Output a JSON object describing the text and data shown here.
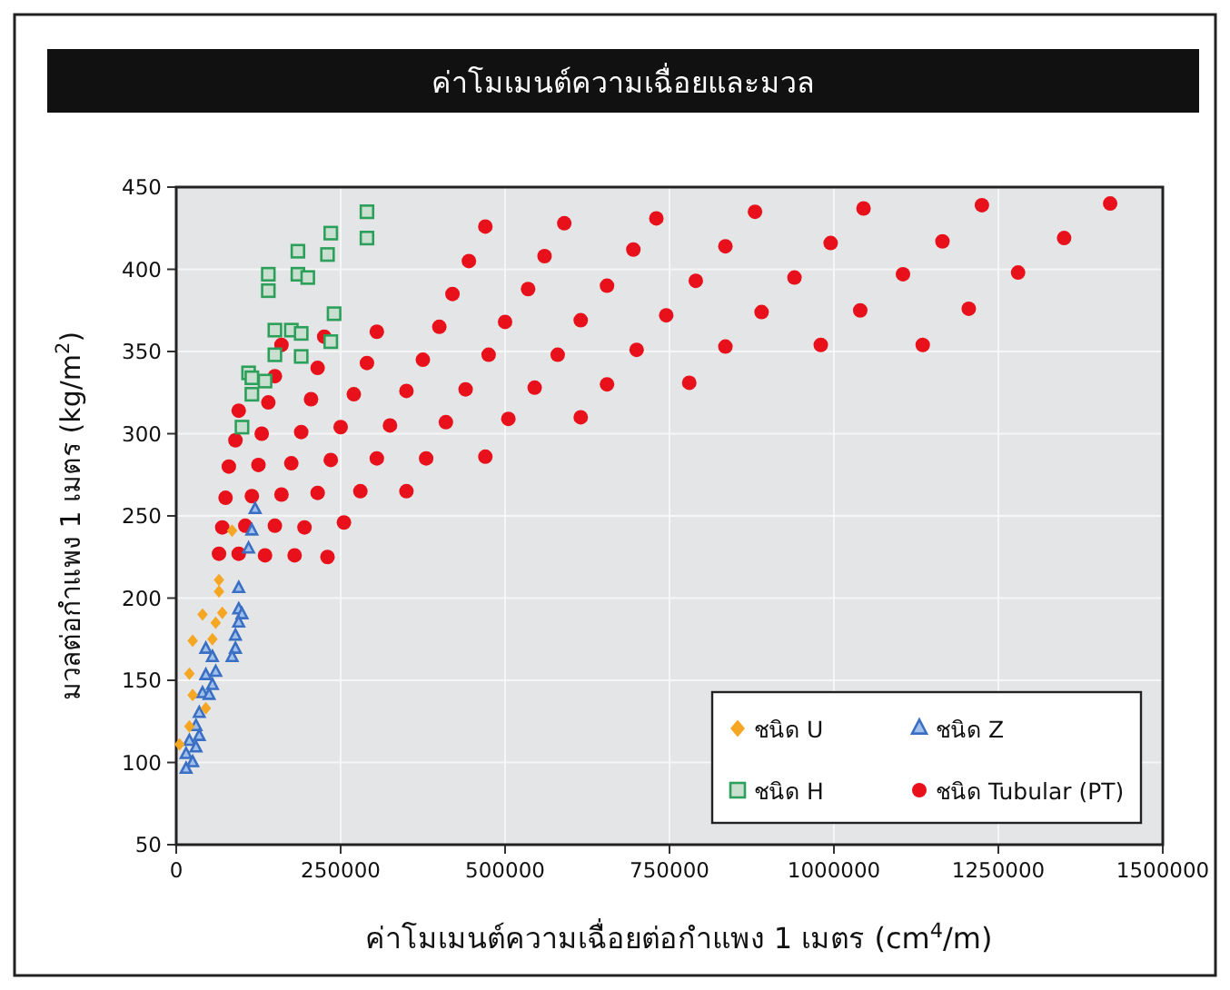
{
  "chart_data": {
    "type": "scatter",
    "title": "ค่าโมเมนต์ความเฉื่อยและมวล",
    "xlabel": "ค่าโมเมนต์ความเฉื่อยต่อกำแพง 1 เมตร (cm$^{4}$/m)",
    "ylabel": "มวลต่อกำแพง 1 เมตร (kg/m$^{2}$)",
    "xlim": [
      0,
      1500000
    ],
    "ylim": [
      50,
      450
    ],
    "xticks": [
      0,
      250000,
      500000,
      750000,
      1000000,
      1250000,
      1500000
    ],
    "yticks": [
      50,
      100,
      150,
      200,
      250,
      300,
      350,
      400,
      450
    ],
    "grid": true,
    "legend": "bottom right",
    "series": [
      {
        "name": "ชนิด U",
        "color": "#f5a623",
        "marker": "diamond",
        "x": [
          85000,
          65000,
          65000,
          40000,
          70000,
          60000,
          25000,
          55000,
          20000,
          25000,
          45000,
          20000,
          5000
        ],
        "values": [
          241,
          211,
          204,
          190,
          191,
          185,
          174,
          175,
          154,
          141,
          133,
          122,
          111
        ]
      },
      {
        "name": "ชนิด Z",
        "color": "#3a6fc4",
        "marker": "triangle",
        "x": [
          120000,
          115000,
          110000,
          95000,
          95000,
          100000,
          95000,
          90000,
          90000,
          85000,
          45000,
          55000,
          60000,
          45000,
          55000,
          40000,
          50000,
          35000,
          30000,
          35000,
          20000,
          30000,
          15000,
          25000,
          15000
        ],
        "values": [
          254,
          241,
          230,
          206,
          193,
          190,
          185,
          177,
          169,
          164,
          169,
          164,
          155,
          153,
          147,
          142,
          141,
          130,
          122,
          116,
          113,
          109,
          105,
          100,
          96
        ]
      },
      {
        "name": "ชนิด H",
        "color": "#2ca05a",
        "marker": "square",
        "x": [
          290000,
          235000,
          290000,
          185000,
          230000,
          140000,
          185000,
          200000,
          140000,
          240000,
          150000,
          175000,
          190000,
          235000,
          150000,
          190000,
          110000,
          115000,
          135000,
          115000,
          100000
        ],
        "values": [
          435,
          422,
          419,
          411,
          409,
          397,
          397,
          395,
          387,
          373,
          363,
          363,
          361,
          356,
          348,
          347,
          337,
          334,
          332,
          324,
          304
        ]
      },
      {
        "name": "ชนิด Tubular (PT)",
        "color": "#e8101a",
        "marker": "circle",
        "x": [
          1420000,
          1225000,
          1045000,
          880000,
          730000,
          590000,
          470000,
          1350000,
          1165000,
          995000,
          835000,
          695000,
          560000,
          445000,
          1280000,
          1105000,
          940000,
          790000,
          655000,
          535000,
          420000,
          1205000,
          1040000,
          890000,
          745000,
          615000,
          500000,
          400000,
          1135000,
          980000,
          835000,
          700000,
          580000,
          475000,
          375000,
          305000,
          225000,
          160000,
          290000,
          215000,
          150000,
          780000,
          655000,
          545000,
          440000,
          350000,
          270000,
          205000,
          140000,
          95000,
          615000,
          505000,
          410000,
          325000,
          250000,
          190000,
          130000,
          90000,
          470000,
          380000,
          305000,
          235000,
          175000,
          125000,
          80000,
          350000,
          280000,
          215000,
          160000,
          115000,
          75000,
          255000,
          195000,
          150000,
          105000,
          70000,
          230000,
          180000,
          135000,
          95000,
          65000
        ],
        "values": [
          440,
          439,
          437,
          435,
          431,
          428,
          426,
          419,
          417,
          416,
          414,
          412,
          408,
          405,
          398,
          397,
          395,
          393,
          390,
          388,
          385,
          376,
          375,
          374,
          372,
          369,
          368,
          365,
          354,
          354,
          353,
          351,
          348,
          348,
          345,
          362,
          359,
          354,
          343,
          340,
          335,
          331,
          330,
          328,
          327,
          326,
          324,
          321,
          319,
          314,
          310,
          309,
          307,
          305,
          304,
          301,
          300,
          296,
          286,
          285,
          285,
          284,
          282,
          281,
          280,
          265,
          265,
          264,
          263,
          262,
          261,
          246,
          243,
          244,
          244,
          243,
          225,
          226,
          226,
          227,
          227
        ]
      }
    ]
  }
}
